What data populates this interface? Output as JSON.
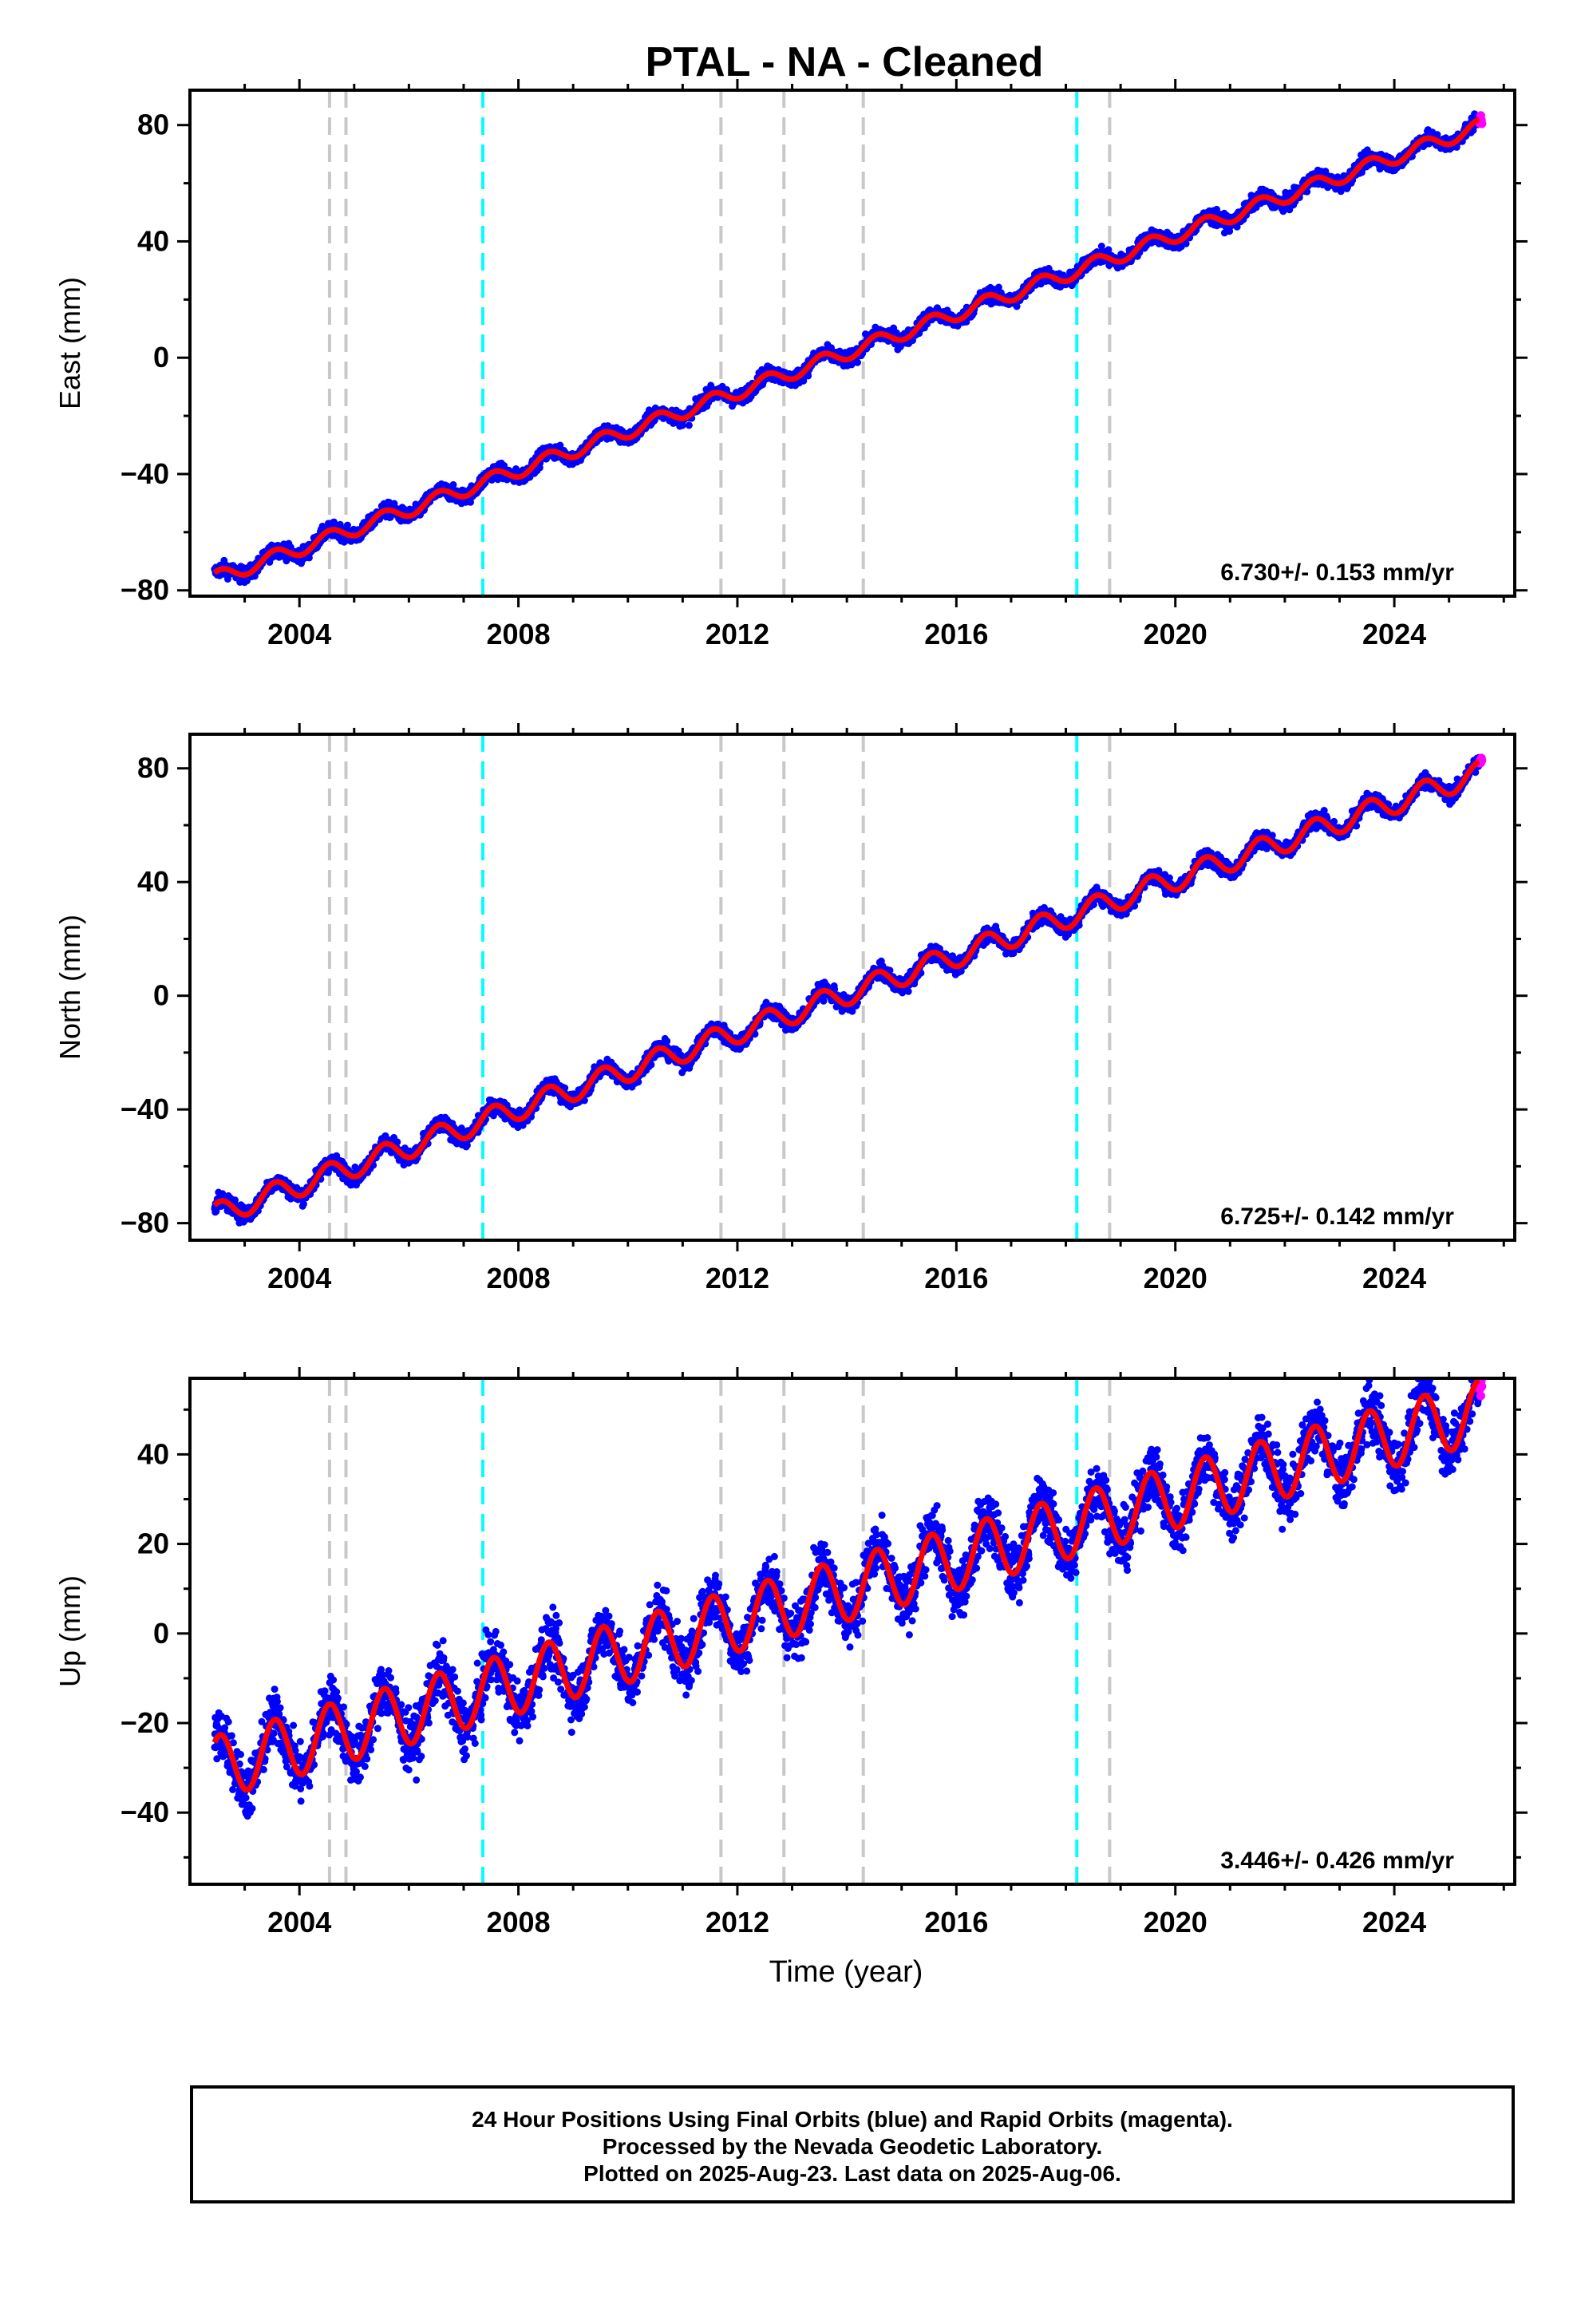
{
  "title": "PTAL  - NA - Cleaned",
  "x_tick_labels": [
    "2004",
    "2008",
    "2012",
    "2016",
    "2020",
    "2024"
  ],
  "xlabel": "Time (year)",
  "colors": {
    "final_orbits": "#0000ff",
    "rapid_orbits": "#ff00ff",
    "model": "#ff0000",
    "gray_break": "#c8c8c8",
    "cyan_break": "#00ffff"
  },
  "chart_data": [
    {
      "type": "scatter",
      "component": "East",
      "ylabel": "East (mm)",
      "xlim": [
        2002.0,
        2026.2
      ],
      "ylim": [
        -82,
        92
      ],
      "yticks": [
        -80,
        -40,
        0,
        40,
        80
      ],
      "ytick_labels": [
        "−80",
        "−40",
        "0",
        "40",
        "80"
      ],
      "rate_label": "6.730+/- 0.153 mm/yr",
      "rate": 6.73,
      "start_value": -76,
      "annual_amplitude": 2.5,
      "noise": 1.8,
      "gray_breaks": [
        2004.55,
        2004.85,
        2011.7,
        2012.85,
        2014.3,
        2018.8
      ],
      "cyan_breaks": [
        2007.35,
        2018.2
      ]
    },
    {
      "type": "scatter",
      "component": "North",
      "ylabel": "North (mm)",
      "xlim": [
        2002.0,
        2026.2
      ],
      "ylim": [
        -86,
        92
      ],
      "yticks": [
        -80,
        -40,
        0,
        40,
        80
      ],
      "ytick_labels": [
        "−80",
        "−40",
        "0",
        "40",
        "80"
      ],
      "rate_label": "6.725+/- 0.142 mm/yr",
      "rate": 6.725,
      "start_value": -77,
      "annual_amplitude": 4,
      "noise": 2.0,
      "gray_breaks": [
        2004.55,
        2004.85,
        2011.7,
        2012.85,
        2014.3,
        2018.8
      ],
      "cyan_breaks": [
        2007.35,
        2018.2
      ]
    },
    {
      "type": "scatter",
      "component": "Up",
      "ylabel": "Up (mm)",
      "xlim": [
        2002.0,
        2026.2
      ],
      "ylim": [
        -56,
        57
      ],
      "yticks": [
        -40,
        -20,
        0,
        20,
        40
      ],
      "ytick_labels": [
        "−40",
        "−20",
        "0",
        "20",
        "40"
      ],
      "rate_label": "3.446+/- 0.426 mm/yr",
      "rate": 3.446,
      "start_value": -30,
      "annual_amplitude": 7,
      "noise": 4.5,
      "gray_breaks": [
        2004.55,
        2004.85,
        2011.7,
        2012.85,
        2014.3,
        2018.8
      ],
      "cyan_breaks": [
        2007.35,
        2018.2
      ]
    }
  ],
  "footer": {
    "line1": "24 Hour Positions Using Final Orbits (blue) and Rapid Orbits (magenta).",
    "line2": "Processed by the Nevada Geodetic Laboratory.",
    "line3": "Plotted on 2025-Aug-23. Last data on 2025-Aug-06."
  }
}
